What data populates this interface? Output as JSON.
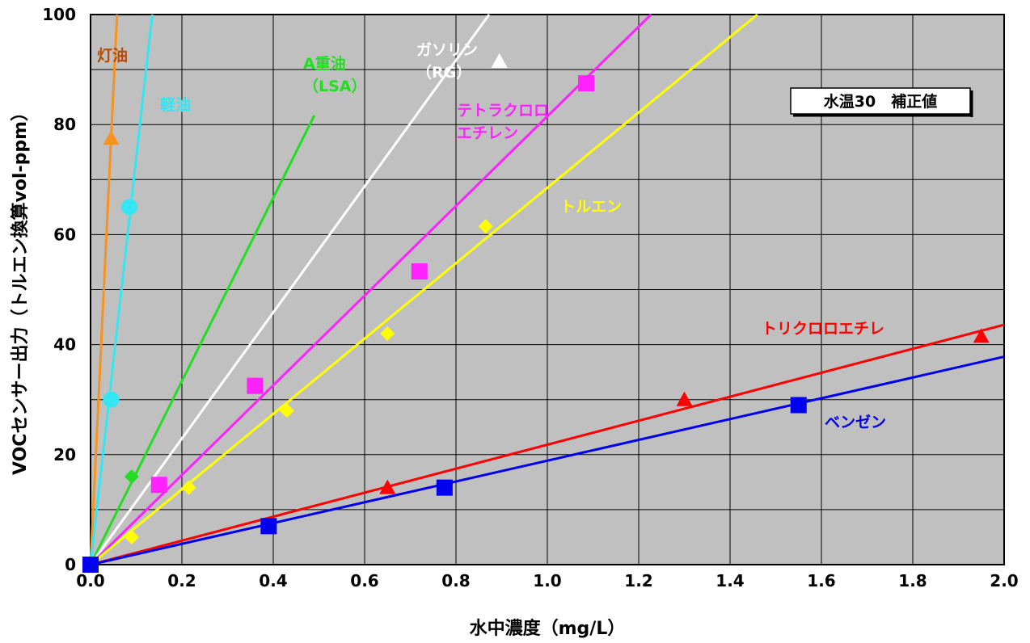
{
  "chart_data": {
    "type": "scatter",
    "xlabel": "水中濃度（mg/L）",
    "ylabel": "VOCセンサー出力（トルエン換算vol-ppm）",
    "xlim": [
      0,
      2.0
    ],
    "ylim": [
      0,
      100
    ],
    "x_ticks": [
      "0.0",
      "0.2",
      "0.4",
      "0.6",
      "0.8",
      "1.0",
      "1.2",
      "1.4",
      "1.6",
      "1.8",
      "2.0"
    ],
    "y_ticks": [
      "0",
      "20",
      "40",
      "60",
      "80",
      "100"
    ],
    "grid": true,
    "background": "#c0c0c0",
    "annotation_box": "水温30　補正値",
    "series": [
      {
        "name": "灯油",
        "label_lines": [
          "灯油"
        ],
        "color": "#f7931e",
        "label_color": "#b84a00",
        "marker": "triangle",
        "x": [
          0.0,
          0.045
        ],
        "y": [
          0,
          77.5
        ],
        "slope": 1724
      },
      {
        "name": "軽油",
        "label_lines": [
          "軽油"
        ],
        "color": "#33e6f2",
        "label_color": "#33e6f2",
        "marker": "circle",
        "x": [
          0.0,
          0.045,
          0.085
        ],
        "y": [
          0,
          30,
          65
        ],
        "slope": 740
      },
      {
        "name": "A重油（LSA）",
        "label_lines": [
          "A重油",
          "（LSA）"
        ],
        "color": "#22dd22",
        "label_color": "#22dd22",
        "marker": "diamond",
        "x": [
          0.0,
          0.09
        ],
        "y": [
          0,
          16
        ],
        "slope": 166.7,
        "line_xmax": 0.49
      },
      {
        "name": "ガソリン（RG）",
        "label_lines": [
          "ガソリン",
          "（RG）"
        ],
        "color": "#ffffff",
        "label_color": "#ffffff",
        "marker": "triangle",
        "x": [
          0.0,
          0.895
        ],
        "y": [
          0,
          91.5
        ],
        "slope": 114.6
      },
      {
        "name": "テトラクロロエチレン",
        "label_lines": [
          "テトラクロロ",
          "エチレン"
        ],
        "color": "#ff22ff",
        "label_color": "#ff22ff",
        "marker": "square",
        "x": [
          0.0,
          0.15,
          0.36,
          0.72,
          1.085
        ],
        "y": [
          0,
          14.5,
          32.5,
          53.3,
          87.5
        ],
        "slope": 81.5
      },
      {
        "name": "トルエン",
        "label_lines": [
          "トルエン"
        ],
        "color": "#ffff00",
        "label_color": "#ffff00",
        "marker": "diamond",
        "x": [
          0.0,
          0.09,
          0.215,
          0.43,
          0.65,
          0.865
        ],
        "y": [
          0,
          5,
          14,
          28,
          42,
          61.5
        ],
        "slope": 68.5
      },
      {
        "name": "トリクロロエチレ",
        "label_lines": [
          "トリクロロエチレ"
        ],
        "color": "#ff0000",
        "label_color": "#ff0000",
        "marker": "triangle",
        "x": [
          0.0,
          0.65,
          1.3,
          1.95
        ],
        "y": [
          0,
          14,
          30,
          41.5
        ],
        "slope": 21.8
      },
      {
        "name": "ベンゼン",
        "label_lines": [
          "ベンゼン"
        ],
        "color": "#0000ee",
        "label_color": "#0000ee",
        "marker": "square",
        "x": [
          0.0,
          0.39,
          0.775,
          1.55
        ],
        "y": [
          0,
          7,
          14,
          29
        ],
        "slope": 18.9
      }
    ]
  }
}
